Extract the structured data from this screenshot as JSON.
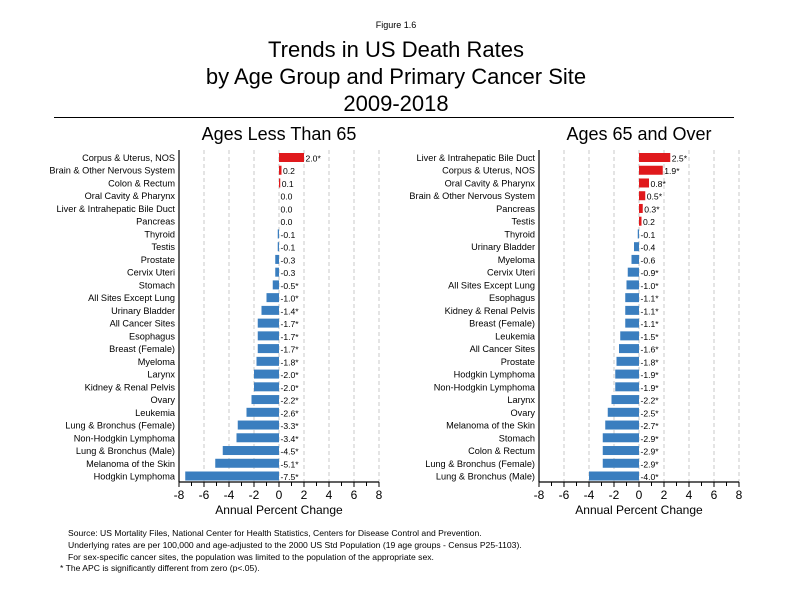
{
  "figure_label": "Figure 1.6",
  "title_lines": [
    "Trends in US Death Rates",
    "by Age Group and Primary Cancer Site",
    "2009-2018"
  ],
  "notes": [
    "Source: US Mortality Files, National Center for Health Statistics, Centers for Disease Control and Prevention.",
    "Underlying rates are per 100,000 and age-adjusted to the 2000 US Std Population (19 age groups - Census P25-1103).",
    "For sex-specific cancer sites, the population was limited to the population of the appropriate sex.",
    "* The APC is significantly different from zero (p<.05)."
  ],
  "colors": {
    "positive": "#e0191c",
    "negative": "#3a7ebf",
    "grid": "#bbbbbb"
  },
  "chart_data": [
    {
      "type": "bar",
      "orientation": "horizontal",
      "title": "Ages Less Than 65",
      "xlabel": "Annual Percent Change",
      "ylabel": "",
      "xlim": [
        -8,
        8
      ],
      "xticks": [
        -8,
        -6,
        -4,
        -2,
        0,
        2,
        4,
        6,
        8
      ],
      "grid": "vertical dashed",
      "categories": [
        "Corpus & Uterus, NOS",
        "Brain & Other Nervous System",
        "Colon & Rectum",
        "Oral Cavity & Pharynx",
        "Liver & Intrahepatic Bile Duct",
        "Pancreas",
        "Thyroid",
        "Testis",
        "Prostate",
        "Cervix Uteri",
        "Stomach",
        "All Sites Except Lung",
        "Urinary Bladder",
        "All Cancer Sites",
        "Esophagus",
        "Breast (Female)",
        "Myeloma",
        "Larynx",
        "Kidney & Renal Pelvis",
        "Ovary",
        "Leukemia",
        "Lung & Bronchus (Female)",
        "Non-Hodgkin Lymphoma",
        "Lung & Bronchus (Male)",
        "Melanoma of the Skin",
        "Hodgkin Lymphoma"
      ],
      "values": [
        2.0,
        0.2,
        0.1,
        0.0,
        0.0,
        0.0,
        -0.1,
        -0.1,
        -0.3,
        -0.3,
        -0.5,
        -1.0,
        -1.4,
        -1.7,
        -1.7,
        -1.7,
        -1.8,
        -2.0,
        -2.0,
        -2.2,
        -2.6,
        -3.3,
        -3.4,
        -4.5,
        -5.1,
        -7.5
      ],
      "labels": [
        "2.0*",
        "0.2",
        "0.1",
        "0.0",
        "0.0",
        "0.0",
        "-0.1",
        "-0.1",
        "-0.3",
        "-0.3",
        "-0.5*",
        "-1.0*",
        "-1.4*",
        "-1.7*",
        "-1.7*",
        "-1.7*",
        "-1.8*",
        "-2.0*",
        "-2.0*",
        "-2.2*",
        "-2.6*",
        "-3.3*",
        "-3.4*",
        "-4.5*",
        "-5.1*",
        "-7.5*"
      ]
    },
    {
      "type": "bar",
      "orientation": "horizontal",
      "title": "Ages 65 and Over",
      "xlabel": "Annual Percent Change",
      "ylabel": "",
      "xlim": [
        -8,
        8
      ],
      "xticks": [
        -8,
        -6,
        -4,
        -2,
        0,
        2,
        4,
        6,
        8
      ],
      "grid": "vertical dashed",
      "categories": [
        "Liver & Intrahepatic Bile Duct",
        "Corpus & Uterus, NOS",
        "Oral Cavity & Pharynx",
        "Brain & Other Nervous System",
        "Pancreas",
        "Testis",
        "Thyroid",
        "Urinary Bladder",
        "Myeloma",
        "Cervix Uteri",
        "All Sites Except Lung",
        "Esophagus",
        "Kidney & Renal Pelvis",
        "Breast (Female)",
        "Leukemia",
        "All Cancer Sites",
        "Prostate",
        "Hodgkin Lymphoma",
        "Non-Hodgkin Lymphoma",
        "Larynx",
        "Ovary",
        "Melanoma of the Skin",
        "Stomach",
        "Colon & Rectum",
        "Lung & Bronchus (Female)",
        "Lung & Bronchus (Male)"
      ],
      "values": [
        2.5,
        1.9,
        0.8,
        0.5,
        0.3,
        0.2,
        -0.1,
        -0.4,
        -0.6,
        -0.9,
        -1.0,
        -1.1,
        -1.1,
        -1.1,
        -1.5,
        -1.6,
        -1.8,
        -1.9,
        -1.9,
        -2.2,
        -2.5,
        -2.7,
        -2.9,
        -2.9,
        -2.9,
        -4.0
      ],
      "labels": [
        "2.5*",
        "1.9*",
        "0.8*",
        "0.5*",
        "0.3*",
        "0.2",
        "-0.1",
        "-0.4",
        "-0.6",
        "-0.9*",
        "-1.0*",
        "-1.1*",
        "-1.1*",
        "-1.1*",
        "-1.5*",
        "-1.6*",
        "-1.8*",
        "-1.9*",
        "-1.9*",
        "-2.2*",
        "-2.5*",
        "-2.7*",
        "-2.9*",
        "-2.9*",
        "-2.9*",
        "-4.0*"
      ]
    }
  ]
}
